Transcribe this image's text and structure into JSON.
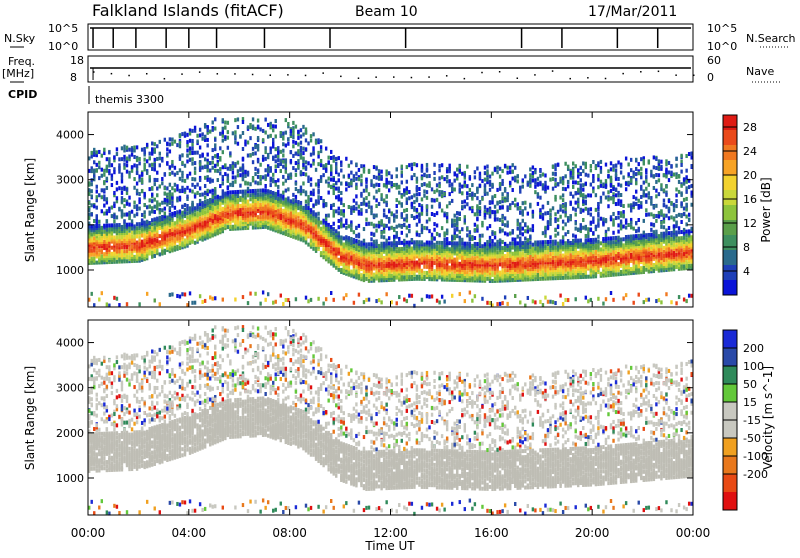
{
  "header": {
    "station": "Falkland Islands (fitACF)",
    "beam": "Beam 10",
    "date": "17/Mar/2011"
  },
  "noise_panel": {
    "left_label": "N.Sky",
    "right_label": "N.Search",
    "left_ticks": [
      "10^5",
      "10^0"
    ],
    "right_ticks": [
      "10^5",
      "10^0"
    ]
  },
  "freq_panel": {
    "left_label_line1": "Freq.",
    "left_label_line2": "[MHz]",
    "right_label": "Nave",
    "left_ticks": [
      "18",
      "8"
    ],
    "right_ticks": [
      "60",
      "0"
    ]
  },
  "cpid": {
    "label": "CPID",
    "value": "themis 3300"
  },
  "chart_data": [
    {
      "type": "heatmap",
      "title": "",
      "xlabel": "Time UT",
      "ylabel": "Slant Range [km]",
      "x_ticks": [
        "00:00",
        "04:00",
        "08:00",
        "12:00",
        "16:00",
        "20:00",
        "00:00"
      ],
      "xlim_hours": [
        0,
        24
      ],
      "y_ticks": [
        1000,
        2000,
        3000,
        4000
      ],
      "ylim_km": [
        180,
        4500
      ],
      "colorbar": {
        "label": "Power [dB]",
        "ticks": [
          4,
          8,
          12,
          16,
          20,
          24,
          28
        ],
        "range": [
          0,
          30
        ],
        "colors": [
          "#0b14d8",
          "#1e3fb8",
          "#2a6a8c",
          "#3d8f5f",
          "#5a9f4a",
          "#8dc43c",
          "#c9d83a",
          "#f3d22e",
          "#f7a325",
          "#f07820",
          "#ea4a1a",
          "#e01b14"
        ]
      },
      "band_profile_hours": [
        0,
        2,
        4,
        5.5,
        7,
        8.5,
        10,
        11,
        13,
        16,
        18,
        20,
        22,
        24
      ],
      "band_center_km": [
        1550,
        1600,
        1950,
        2300,
        2350,
        2050,
        1350,
        1150,
        1200,
        1150,
        1200,
        1250,
        1350,
        1450
      ]
    },
    {
      "type": "heatmap",
      "title": "",
      "xlabel": "Time UT",
      "ylabel": "Slant Range [km]",
      "x_ticks": [
        "00:00",
        "04:00",
        "08:00",
        "12:00",
        "16:00",
        "20:00",
        "00:00"
      ],
      "xlim_hours": [
        0,
        24
      ],
      "y_ticks": [
        1000,
        2000,
        3000,
        4000
      ],
      "ylim_km": [
        180,
        4500
      ],
      "colorbar": {
        "label": "Velocity [m s^-1]",
        "ticks": [
          200,
          100,
          50,
          15,
          -15,
          -50,
          -100,
          -200
        ],
        "colors": [
          "#1a2ad6",
          "#2a4aa8",
          "#2f8a5a",
          "#63c83a",
          "#c8c8c0",
          "#c8c8c0",
          "#f0a020",
          "#e8781c",
          "#e84a14",
          "#e01010"
        ]
      }
    }
  ],
  "colors": {
    "ground_scatter": "#bebdb4",
    "positive_velocity": "#1a2ad6",
    "negative_velocity": "#e01010"
  }
}
